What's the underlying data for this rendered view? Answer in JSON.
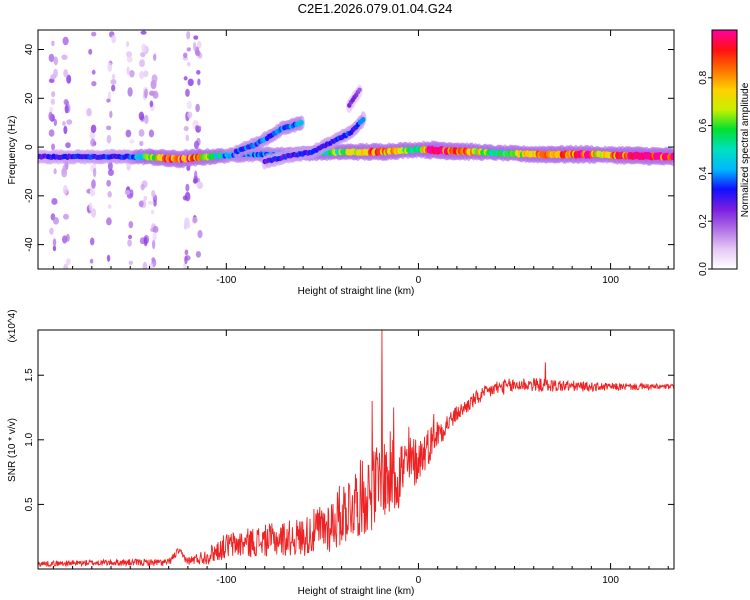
{
  "title": "C2E1.2026.079.01.04.G24",
  "chart_data": [
    {
      "type": "heatmap",
      "title": "C2E1.2026.079.01.04.G24",
      "xlabel": "Height of straight line (km)",
      "ylabel": "Frequency (Hz)",
      "xlim": [
        -198,
        133
      ],
      "ylim": [
        -50,
        48
      ],
      "xticks": [
        {
          "value": -100,
          "label": "-100"
        },
        {
          "value": 0,
          "label": "0"
        },
        {
          "value": 100,
          "label": "100"
        }
      ],
      "yticks": [
        {
          "value": -40,
          "label": "-40"
        },
        {
          "value": -20,
          "label": "-20"
        },
        {
          "value": 0,
          "label": "0"
        },
        {
          "value": 20,
          "label": "20"
        },
        {
          "value": 40,
          "label": "40"
        }
      ],
      "colorbar": {
        "label": "Normalized spectral amplitude",
        "range": [
          0,
          1
        ],
        "ticks": [
          {
            "value": 0.0,
            "label": "0.0"
          },
          {
            "value": 0.2,
            "label": "0.2"
          },
          {
            "value": 0.4,
            "label": "0.4"
          },
          {
            "value": 0.6,
            "label": "0.6"
          },
          {
            "value": 0.8,
            "label": "0.8"
          }
        ],
        "colors": [
          "#ffffff",
          "#e6c8f5",
          "#b070e6",
          "#7a1ee0",
          "#1010ff",
          "#00b8ff",
          "#00e0c0",
          "#00e030",
          "#c8f000",
          "#ffd000",
          "#ff7000",
          "#ff1010",
          "#ff00a0"
        ]
      },
      "ridges": [
        {
          "name": "main-line",
          "points": [
            [
              -198,
              -4
            ],
            [
              -170,
              -4
            ],
            [
              -140,
              -4
            ],
            [
              -125,
              -5
            ],
            [
              -110,
              -4
            ],
            [
              -90,
              -3
            ],
            [
              -70,
              -3
            ],
            [
              -40,
              -2
            ],
            [
              -20,
              -2
            ],
            [
              0,
              -1
            ],
            [
              30,
              -2
            ],
            [
              60,
              -3
            ],
            [
              90,
              -3
            ],
            [
              133,
              -4
            ]
          ],
          "amplitude": [
            [
              -198,
              0.3
            ],
            [
              -150,
              0.35
            ],
            [
              -130,
              0.9
            ],
            [
              -120,
              0.9
            ],
            [
              -100,
              0.4
            ],
            [
              -60,
              0.4
            ],
            [
              -22,
              0.85
            ],
            [
              -10,
              0.7
            ],
            [
              0,
              0.5
            ],
            [
              5,
              0.95
            ],
            [
              20,
              0.95
            ],
            [
              40,
              0.5
            ],
            [
              70,
              0.9
            ],
            [
              90,
              0.95
            ],
            [
              95,
              0.6
            ],
            [
              105,
              0.95
            ],
            [
              133,
              0.95
            ]
          ]
        },
        {
          "name": "upper-ghost-branch",
          "points": [
            [
              -95,
              -2
            ],
            [
              -85,
              1
            ],
            [
              -78,
              4
            ],
            [
              -70,
              8
            ],
            [
              -60,
              10
            ]
          ],
          "amplitude": [
            [
              -95,
              0.35
            ],
            [
              -60,
              0.4
            ]
          ]
        },
        {
          "name": "lower-ghost-branch",
          "points": [
            [
              -80,
              -6
            ],
            [
              -70,
              -4
            ],
            [
              -55,
              -2
            ],
            [
              -45,
              2
            ],
            [
              -35,
              6
            ],
            [
              -28,
              12
            ]
          ],
          "amplitude": [
            [
              -80,
              0.3
            ],
            [
              -28,
              0.35
            ]
          ]
        },
        {
          "name": "high-fragment",
          "points": [
            [
              -36,
              17
            ],
            [
              -30,
              24
            ]
          ],
          "amplitude": [
            [
              -36,
              0.25
            ],
            [
              -30,
              0.2
            ]
          ]
        }
      ],
      "noise_columns": [
        -190,
        -183,
        -170,
        -160,
        -150,
        -143,
        -138,
        -120,
        -115
      ]
    },
    {
      "type": "line",
      "xlabel": "Height of straight line (km)",
      "ylabel": "SNR (10 * v/v)",
      "y_multiplier": "(x10^4)",
      "color": "#ee2222",
      "xlim": [
        -198,
        133
      ],
      "ylim": [
        0,
        1.85
      ],
      "xticks": [
        {
          "value": -100,
          "label": "-100"
        },
        {
          "value": 0,
          "label": "0"
        },
        {
          "value": 100,
          "label": "100"
        }
      ],
      "yticks": [
        {
          "value": 0.5,
          "label": "0.5"
        },
        {
          "value": 1.0,
          "label": "1.0"
        },
        {
          "value": 1.5,
          "label": "1.5"
        }
      ],
      "envelope": [
        [
          -198,
          0.04
        ],
        [
          -160,
          0.05
        ],
        [
          -130,
          0.05
        ],
        [
          -125,
          0.14
        ],
        [
          -120,
          0.06
        ],
        [
          -110,
          0.1
        ],
        [
          -100,
          0.18
        ],
        [
          -80,
          0.22
        ],
        [
          -60,
          0.25
        ],
        [
          -45,
          0.35
        ],
        [
          -35,
          0.5
        ],
        [
          -25,
          0.6
        ],
        [
          -18,
          0.7
        ],
        [
          -10,
          0.75
        ],
        [
          0,
          0.85
        ],
        [
          10,
          1.05
        ],
        [
          20,
          1.2
        ],
        [
          30,
          1.32
        ],
        [
          40,
          1.4
        ],
        [
          55,
          1.43
        ],
        [
          70,
          1.42
        ],
        [
          90,
          1.41
        ],
        [
          110,
          1.41
        ],
        [
          133,
          1.41
        ]
      ],
      "noise_amplitude": [
        [
          -198,
          0.02
        ],
        [
          -120,
          0.03
        ],
        [
          -100,
          0.1
        ],
        [
          -60,
          0.15
        ],
        [
          -30,
          0.3
        ],
        [
          -15,
          0.35
        ],
        [
          0,
          0.18
        ],
        [
          20,
          0.06
        ],
        [
          50,
          0.06
        ],
        [
          70,
          0.05
        ],
        [
          100,
          0.03
        ],
        [
          133,
          0.02
        ]
      ],
      "spikes": [
        {
          "x": -19,
          "y": 1.85
        },
        {
          "x": -24,
          "y": 1.3
        },
        {
          "x": -13,
          "y": 1.25
        },
        {
          "x": -5,
          "y": 1.1
        },
        {
          "x": 8,
          "y": 1.2
        },
        {
          "x": 66,
          "y": 1.6
        }
      ]
    }
  ]
}
